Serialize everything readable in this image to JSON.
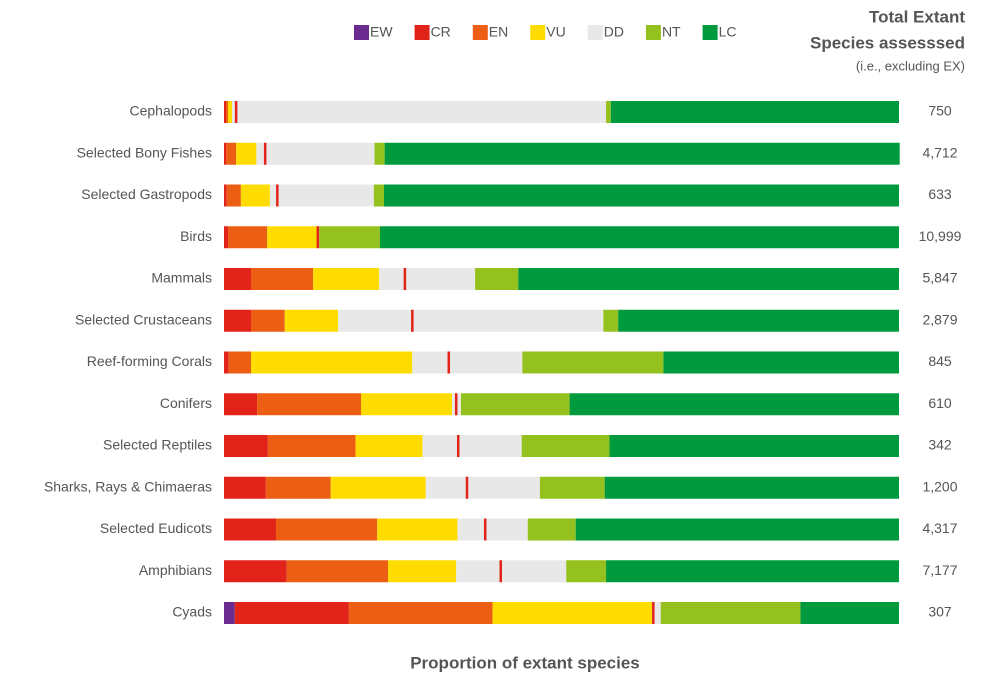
{
  "chart_data": {
    "type": "stacked-bar-horizontal",
    "x_label": "Proportion of extant species",
    "right_title": [
      "Total Extant",
      "Species assesssed"
    ],
    "right_subtitle": "(i.e., excluding EX)",
    "xlim": [
      0,
      100
    ],
    "categories": [
      "Cephalopods",
      "Selected Bony Fishes",
      "Selected Gastropods",
      "Birds",
      "Mammals",
      "Selected Crustaceans",
      "Reef-forming Corals",
      "Conifers",
      "Selected Reptiles",
      "Sharks, Rays & Chimaeras",
      "Selected Eudicots",
      "Amphibians",
      "Cyads"
    ],
    "series": [
      {
        "name": "EW",
        "color": "#6a2c8f",
        "values": [
          0,
          0,
          0,
          0,
          0,
          0,
          0,
          0,
          0,
          0,
          0,
          0,
          1.6
        ]
      },
      {
        "name": "CR",
        "color": "#e2231a",
        "values": [
          0.3,
          0.3,
          0.4,
          0.6,
          4.0,
          4.0,
          0.7,
          4.9,
          6.5,
          6.2,
          7.7,
          9.3,
          16.9
        ]
      },
      {
        "name": "EN",
        "color": "#ec5e14",
        "values": [
          0.3,
          1.5,
          2.1,
          5.8,
          9.2,
          5.0,
          3.3,
          15.4,
          13.0,
          9.6,
          15.0,
          15.0,
          21.3
        ]
      },
      {
        "name": "VU",
        "color": "#ffdc00",
        "values": [
          0.6,
          3.0,
          4.3,
          7.4,
          9.8,
          7.9,
          23.9,
          13.5,
          9.9,
          14.1,
          11.9,
          10.1,
          23.6
        ]
      },
      {
        "name": "DD",
        "color": "#e8e8e8",
        "values": [
          55.4,
          17.5,
          15.4,
          0.3,
          14.2,
          39.3,
          16.3,
          1.3,
          14.7,
          16.9,
          10.4,
          16.3,
          1.3
        ]
      },
      {
        "name": "NT",
        "color": "#95c11f",
        "values": [
          0.7,
          1.5,
          1.5,
          9.0,
          6.4,
          2.2,
          20.9,
          16.1,
          13.0,
          9.6,
          7.1,
          5.9,
          20.7
        ]
      },
      {
        "name": "LC",
        "color": "#009a3e",
        "values": [
          42.7,
          76.3,
          76.3,
          76.9,
          56.4,
          41.6,
          34.9,
          48.8,
          42.9,
          43.6,
          47.9,
          43.4,
          14.6
        ]
      }
    ],
    "markers": {
      "color": "#e2231a",
      "values": [
        1.8,
        6.1,
        7.9,
        13.9,
        26.8,
        27.9,
        33.3,
        34.4,
        34.7,
        36.0,
        38.7,
        41.0,
        63.6
      ]
    },
    "totals": [
      {
        "value": 750,
        "label": "750"
      },
      {
        "value": 4712,
        "label": "4,712"
      },
      {
        "value": 633,
        "label": "633"
      },
      {
        "value": 10999,
        "label": "10,999"
      },
      {
        "value": 5847,
        "label": "5,847"
      },
      {
        "value": 2879,
        "label": "2,879"
      },
      {
        "value": 845,
        "label": "845"
      },
      {
        "value": 610,
        "label": "610"
      },
      {
        "value": 342,
        "label": "342"
      },
      {
        "value": 1200,
        "label": "1,200"
      },
      {
        "value": 4317,
        "label": "4,317"
      },
      {
        "value": 7177,
        "label": "7,177"
      },
      {
        "value": 307,
        "label": "307"
      }
    ]
  }
}
